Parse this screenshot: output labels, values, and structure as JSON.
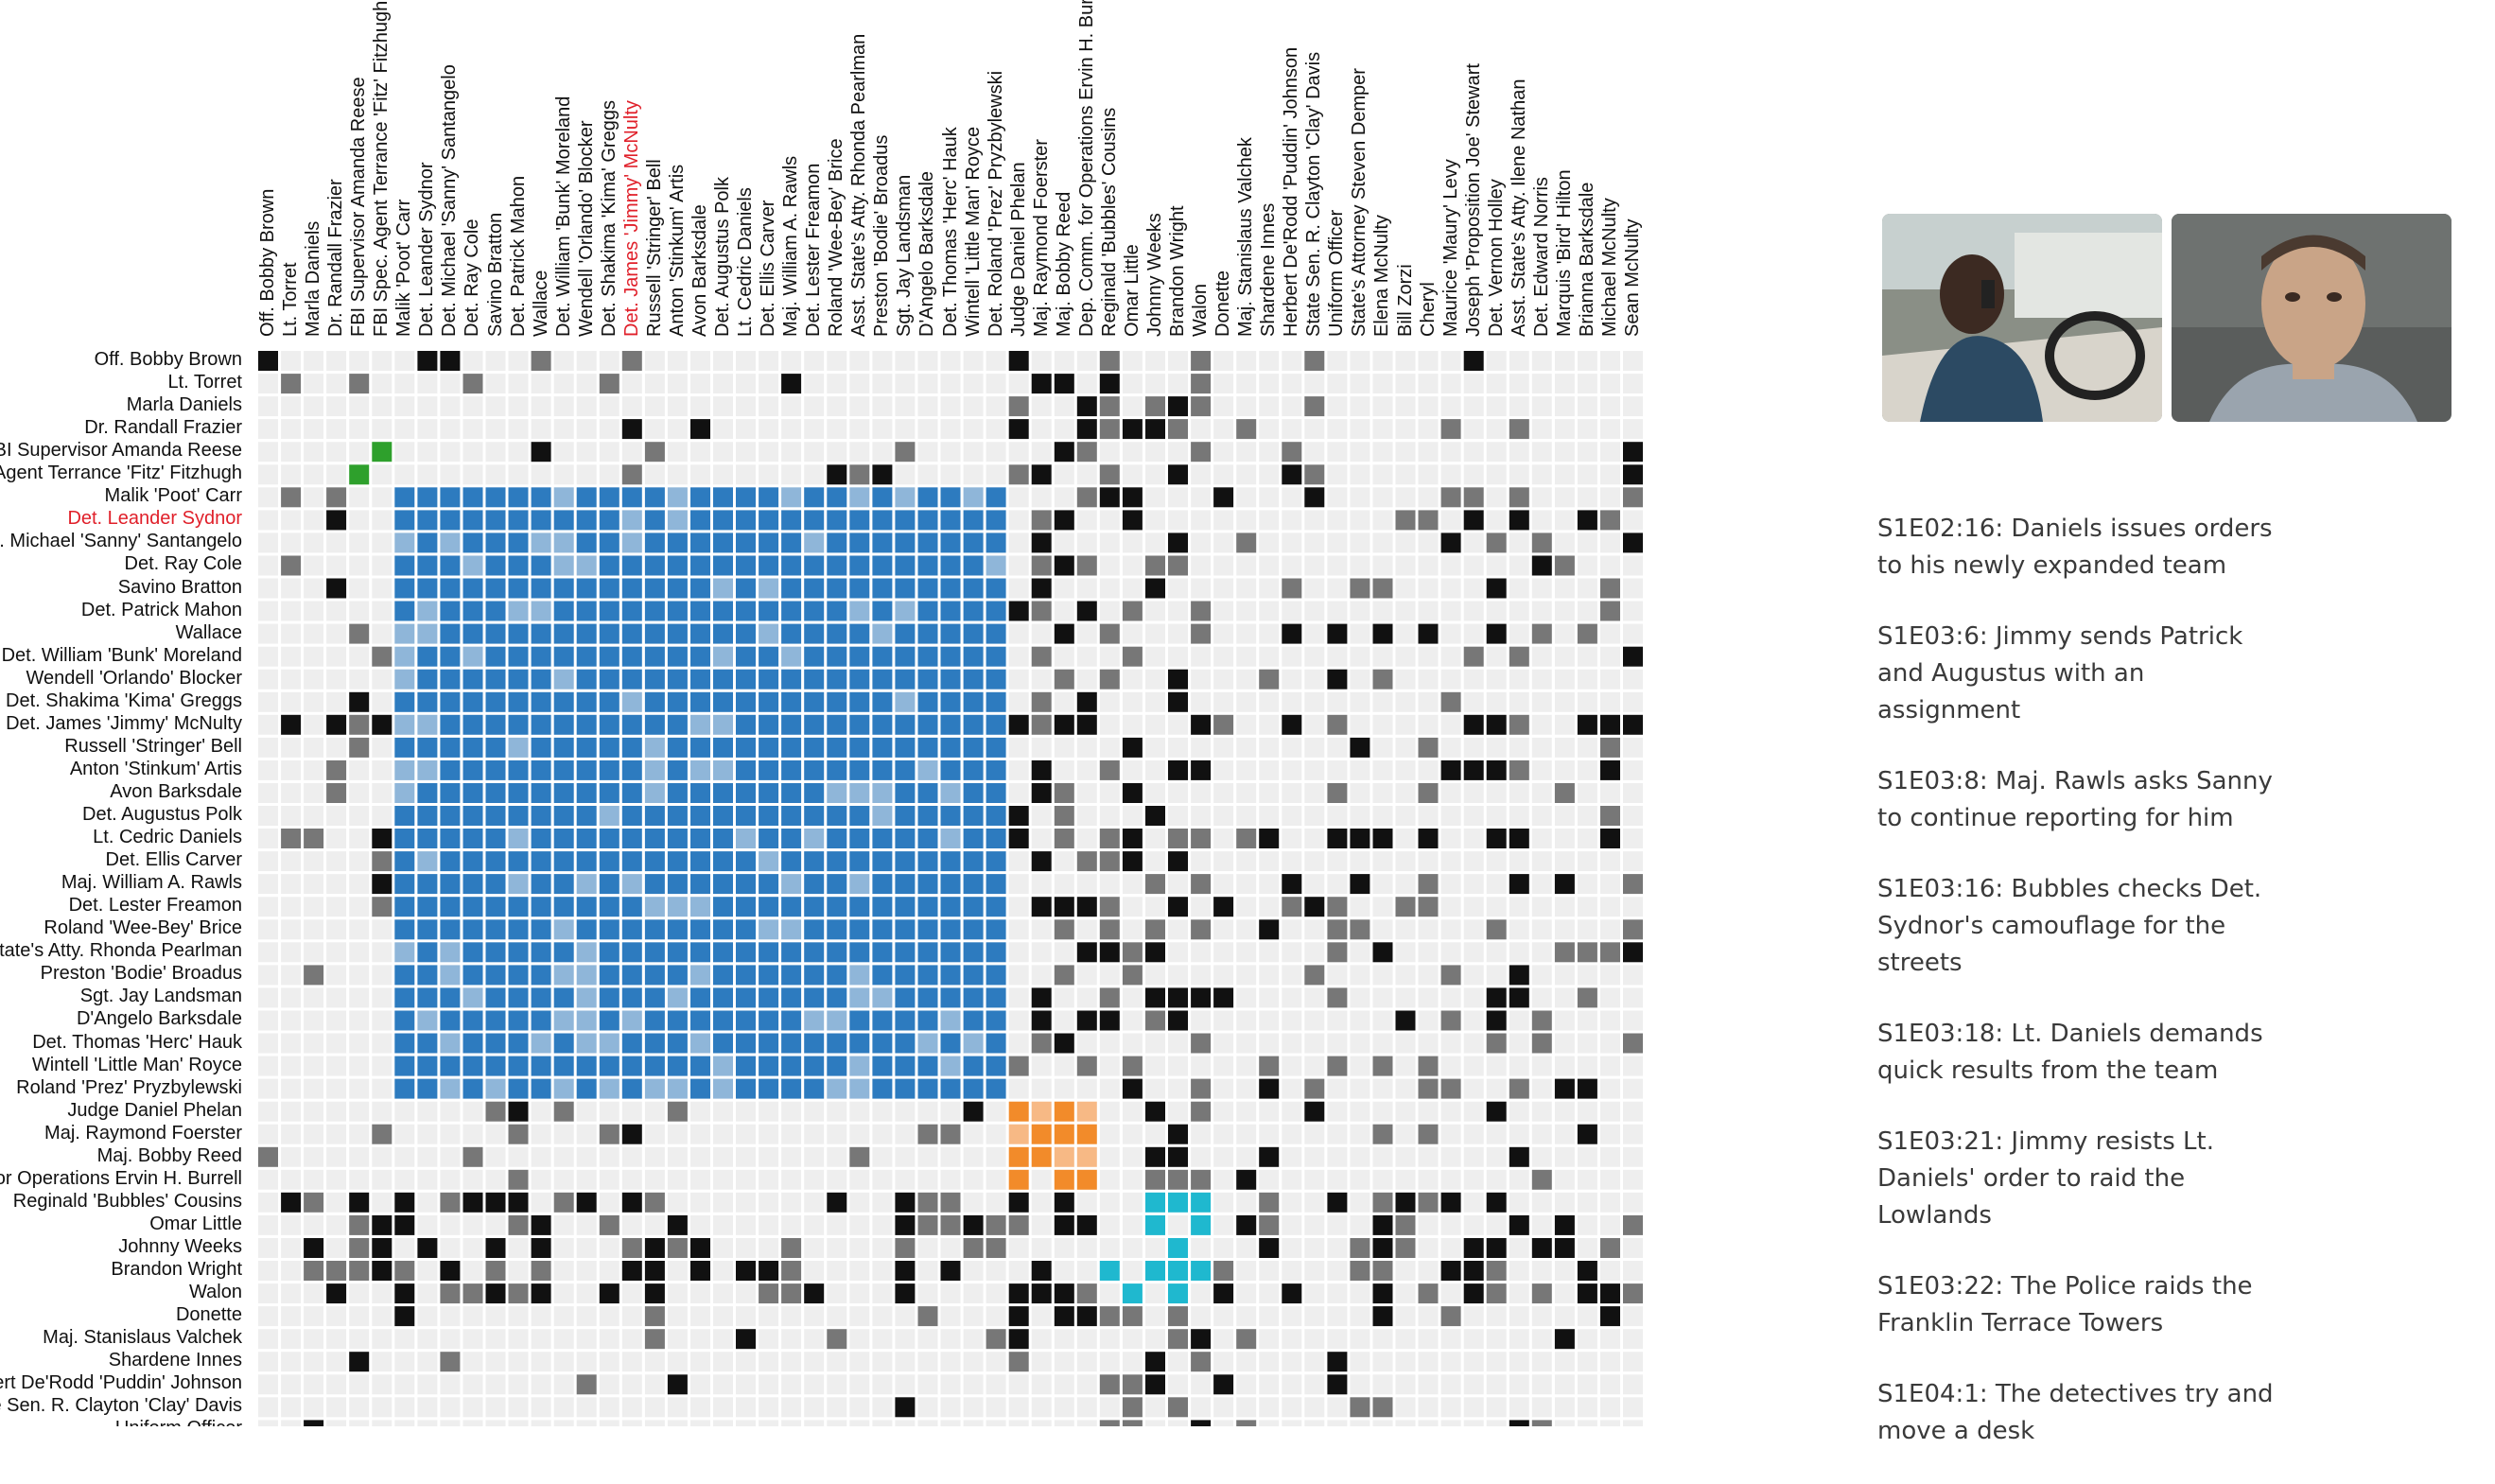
{
  "rows": [
    "Off. Bobby Brown",
    "Lt. Torret",
    "Marla Daniels",
    "Dr. Randall Frazier",
    "FBI Supervisor Amanda Reese",
    "FBI Spec. Agent Terrance 'Fitz' Fitzhugh",
    "Malik 'Poot' Carr",
    "Det. Leander Sydnor",
    "Det. Michael 'Sanny' Santangelo",
    "Det. Ray Cole",
    "Savino Bratton",
    "Det. Patrick Mahon",
    "Wallace",
    "Det. William 'Bunk' Moreland",
    "Wendell 'Orlando' Blocker",
    "Det. Shakima 'Kima' Greggs",
    "Det. James 'Jimmy' McNulty",
    "Russell 'Stringer' Bell",
    "Anton 'Stinkum' Artis",
    "Avon Barksdale",
    "Det. Augustus Polk",
    "Lt. Cedric Daniels",
    "Det. Ellis Carver",
    "Maj. William A. Rawls",
    "Det. Lester Freamon",
    "Roland 'Wee-Bey' Brice",
    "Asst. State's Atty. Rhonda Pearlman",
    "Preston 'Bodie' Broadus",
    "Sgt. Jay Landsman",
    "D'Angelo Barksdale",
    "Det. Thomas 'Herc' Hauk",
    "Wintell 'Little Man' Royce",
    "Roland 'Prez' Pryzbylewski",
    "Judge Daniel Phelan",
    "Maj. Raymond Foerster",
    "Maj. Bobby Reed",
    "Dep. Comm. for Operations Ervin H. Burrell",
    "Reginald 'Bubbles' Cousins",
    "Omar Little",
    "Johnny Weeks",
    "Brandon Wright",
    "Walon",
    "Donette",
    "Maj. Stanislaus Valchek",
    "Shardene Innes",
    "Herbert De'Rodd 'Puddin' Johnson",
    "State Sen. R. Clayton 'Clay' Davis",
    "Uniform Officer"
  ],
  "columns": [
    "Off. Bobby Brown",
    "Lt. Torret",
    "Marla Daniels",
    "Dr. Randall Frazier",
    "FBI Supervisor Amanda Reese",
    "FBI Spec. Agent Terrance 'Fitz' Fitzhugh",
    "Malik 'Poot' Carr",
    "Det. Leander Sydnor",
    "Det. Michael 'Sanny' Santangelo",
    "Det. Ray Cole",
    "Savino Bratton",
    "Det. Patrick Mahon",
    "Wallace",
    "Det. William 'Bunk' Moreland",
    "Wendell 'Orlando' Blocker",
    "Det. Shakima 'Kima' Greggs",
    "Det. James 'Jimmy' McNulty",
    "Russell 'Stringer' Bell",
    "Anton 'Stinkum' Artis",
    "Avon Barksdale",
    "Det. Augustus Polk",
    "Lt. Cedric Daniels",
    "Det. Ellis Carver",
    "Maj. William A. Rawls",
    "Det. Lester Freamon",
    "Roland 'Wee-Bey' Brice",
    "Asst. State's Atty. Rhonda Pearlman",
    "Preston 'Bodie' Broadus",
    "Sgt. Jay Landsman",
    "D'Angelo Barksdale",
    "Det. Thomas 'Herc' Hauk",
    "Wintell 'Little Man' Royce",
    "Det. Roland 'Prez' Pryzbylewski",
    "Judge Daniel Phelan",
    "Maj. Raymond Foerster",
    "Maj. Bobby Reed",
    "Dep. Comm. for Operations Ervin H. Burrell",
    "Reginald 'Bubbles' Cousins",
    "Omar Little",
    "Johnny Weeks",
    "Brandon Wright",
    "Walon",
    "Donette",
    "Maj. Stanislaus Valchek",
    "Shardene Innes",
    "Herbert De'Rodd 'Puddin' Johnson",
    "State Sen. R. Clayton 'Clay' Davis",
    "Uniform Officer",
    "State's Attorney Steven Demper",
    "Elena McNulty",
    "Bill Zorzi",
    "Cheryl",
    "Maurice 'Maury' Levy",
    "Joseph 'Proposition Joe' Stewart",
    "Det. Vernon Holley",
    "Asst. State's Atty. Ilene Nathan",
    "Det. Edward Norris",
    "Marquis 'Bird' Hilton",
    "Brianna Barksdale",
    "Michael McNulty",
    "Sean McNulty"
  ],
  "highlighted": {
    "row": "Det. Leander Sydnor",
    "column": "Det. James 'Jimmy' McNulty"
  },
  "colors": {
    "empty": "#eeeeee",
    "black": "#111111",
    "gray": "#777777",
    "blue": "#2d7bbf",
    "light_blue": "#8fb6d9",
    "green": "#2ea02c",
    "orange": "#f28b2a",
    "light_orange": "#f7b985",
    "cyan": "#1fb8cf",
    "highlight": "#e0202a"
  },
  "groups": {
    "blue": {
      "rows": [
        6,
        32
      ],
      "cols": [
        6,
        32
      ]
    },
    "green": {
      "rows": [
        4,
        5
      ],
      "cols": [
        4,
        5
      ]
    },
    "orange": {
      "rows": [
        33,
        36
      ],
      "cols": [
        33,
        36
      ]
    },
    "cyan": {
      "rows": [
        37,
        41
      ],
      "cols": [
        37,
        41
      ]
    }
  },
  "thumbnails": [
    {
      "name": "scene-thumb-car"
    },
    {
      "name": "scene-thumb-mcnulty"
    }
  ],
  "scenes": [
    "S1E02:16: Daniels issues orders to his newly expanded team",
    "S1E03:6: Jimmy sends Patrick and Augustus with an assignment",
    "S1E03:8: Maj. Rawls asks Sanny to continue reporting for him",
    "S1E03:16: Bubbles checks Det. Sydnor's camouflage for the streets",
    "S1E03:18: Lt. Daniels demands quick results from the team",
    "S1E03:21: Jimmy resists Lt. Daniels' order to raid the Lowlands",
    "S1E03:22: The Police raids the Franklin Terrace Towers",
    "S1E04:1: The detectives try and move a desk"
  ]
}
